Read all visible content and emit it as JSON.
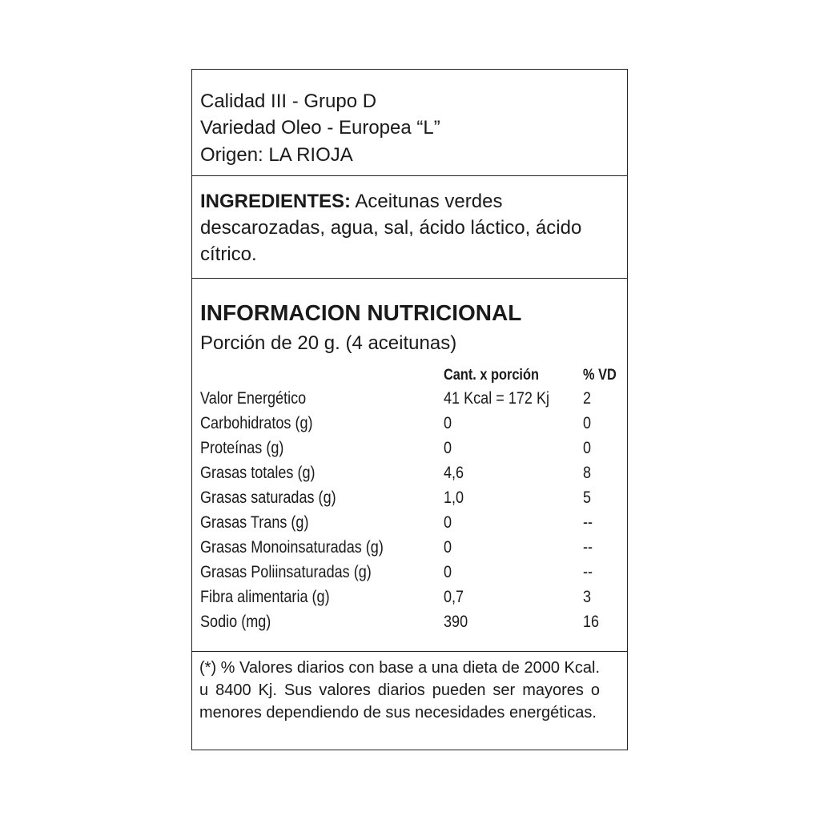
{
  "header": {
    "lines": [
      "Calidad III - Grupo D",
      "Variedad Oleo - Europea “L”",
      "Origen: LA RIOJA"
    ]
  },
  "ingredients": {
    "label": "INGREDIENTES:",
    "text": "Aceitunas verdes descarozadas, agua, sal, ácido láctico, ácido cítrico."
  },
  "nutrition": {
    "title": "INFORMACION NUTRICIONAL",
    "portion": "Porción de 20 g. (4 aceitunas)",
    "columns": [
      "Cant. x porción",
      "% VD"
    ],
    "rows": [
      [
        "Valor Energético",
        "41 Kcal = 172 Kj",
        "2"
      ],
      [
        "Carbohidratos (g)",
        "0",
        "0"
      ],
      [
        "Proteínas (g)",
        "0",
        "0"
      ],
      [
        "Grasas totales (g)",
        "4,6",
        "8"
      ],
      [
        "Grasas saturadas (g)",
        "1,0",
        "5"
      ],
      [
        "Grasas Trans (g)",
        "0",
        "--"
      ],
      [
        "Grasas Monoinsaturadas (g)",
        "0",
        "--"
      ],
      [
        "Grasas Poliinsaturadas (g)",
        "0",
        "--"
      ],
      [
        "Fibra alimentaria (g)",
        "0,7",
        "3"
      ],
      [
        "Sodio (mg)",
        "390",
        "16"
      ]
    ]
  },
  "footnote": "(*) % Valores diarios con base a una dieta de 2000 Kcal. u 8400 Kj. Sus valores diarios pueden ser mayores o menores dependiendo de sus necesidades energéticas."
}
